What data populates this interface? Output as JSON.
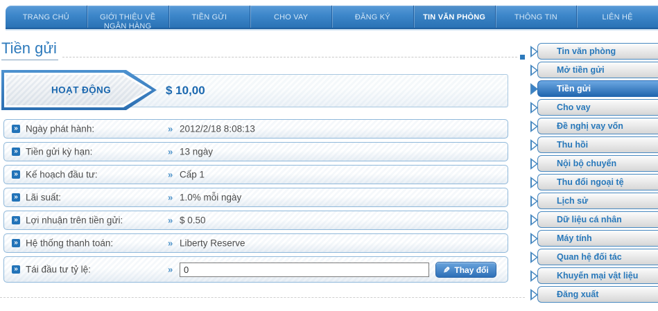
{
  "nav": {
    "items": [
      {
        "label": "TRANG CHỦ"
      },
      {
        "label": "GIỚI THIỆU VỀ NGÂN HÀNG"
      },
      {
        "label": "TIỀN GỬI"
      },
      {
        "label": "CHO VAY"
      },
      {
        "label": "ĐĂNG KÝ"
      },
      {
        "label": "TIN VĂN PHÒNG"
      },
      {
        "label": "THÔNG TIN"
      },
      {
        "label": "LIÊN HỆ"
      }
    ],
    "active": "TIN VĂN PHÒNG"
  },
  "page": {
    "title": "Tiền gửi"
  },
  "banner": {
    "status_label": "HOẠT ĐỘNG",
    "amount": "$ 10,00"
  },
  "icons": {
    "row_bullet": "»",
    "value_marker": "»",
    "pencil": "✎",
    "side_arrow": "▶"
  },
  "details": {
    "rows": [
      {
        "label": "Ngày phát hành:",
        "value": "2012/2/18 8:08:13"
      },
      {
        "label": "Tiền gửi kỳ hạn:",
        "value": "13 ngày"
      },
      {
        "label": "Kế hoạch đầu tư:",
        "value": "Cấp 1"
      },
      {
        "label": "Lãi suất:",
        "value": "1.0% mỗi ngày"
      },
      {
        "label": "Lợi nhuận trên tiền gửi:",
        "value": "$ 0.50"
      },
      {
        "label": "Hệ thống thanh toán:",
        "value": "Liberty Reserve"
      }
    ],
    "reinvest": {
      "label": "Tái đầu tư tỷ lệ:",
      "input_value": "0",
      "button_label": "Thay đổi"
    }
  },
  "sidebar": {
    "items": [
      {
        "label": "Tin văn phòng"
      },
      {
        "label": "Mở tiền gửi"
      },
      {
        "label": "Tiền gửi"
      },
      {
        "label": "Cho vay"
      },
      {
        "label": "Đề nghị vay vốn"
      },
      {
        "label": "Thu hồi"
      },
      {
        "label": "Nội bộ chuyển"
      },
      {
        "label": "Thu đổi ngoại tệ"
      },
      {
        "label": "Lịch sử"
      },
      {
        "label": "Dữ liệu cá nhân"
      },
      {
        "label": "Máy tính"
      },
      {
        "label": "Quan hệ đối tác"
      },
      {
        "label": "Khuyến mại vật liệu"
      },
      {
        "label": "Đăng xuất"
      }
    ],
    "active": "Tiền gửi"
  },
  "colors": {
    "nav_gradient_top": "#5a9bd8",
    "nav_gradient_bottom": "#2a72b5",
    "accent_blue": "#2d7abc",
    "active_item_blue": "#2065ae",
    "text_gray": "#4b4b4b"
  }
}
